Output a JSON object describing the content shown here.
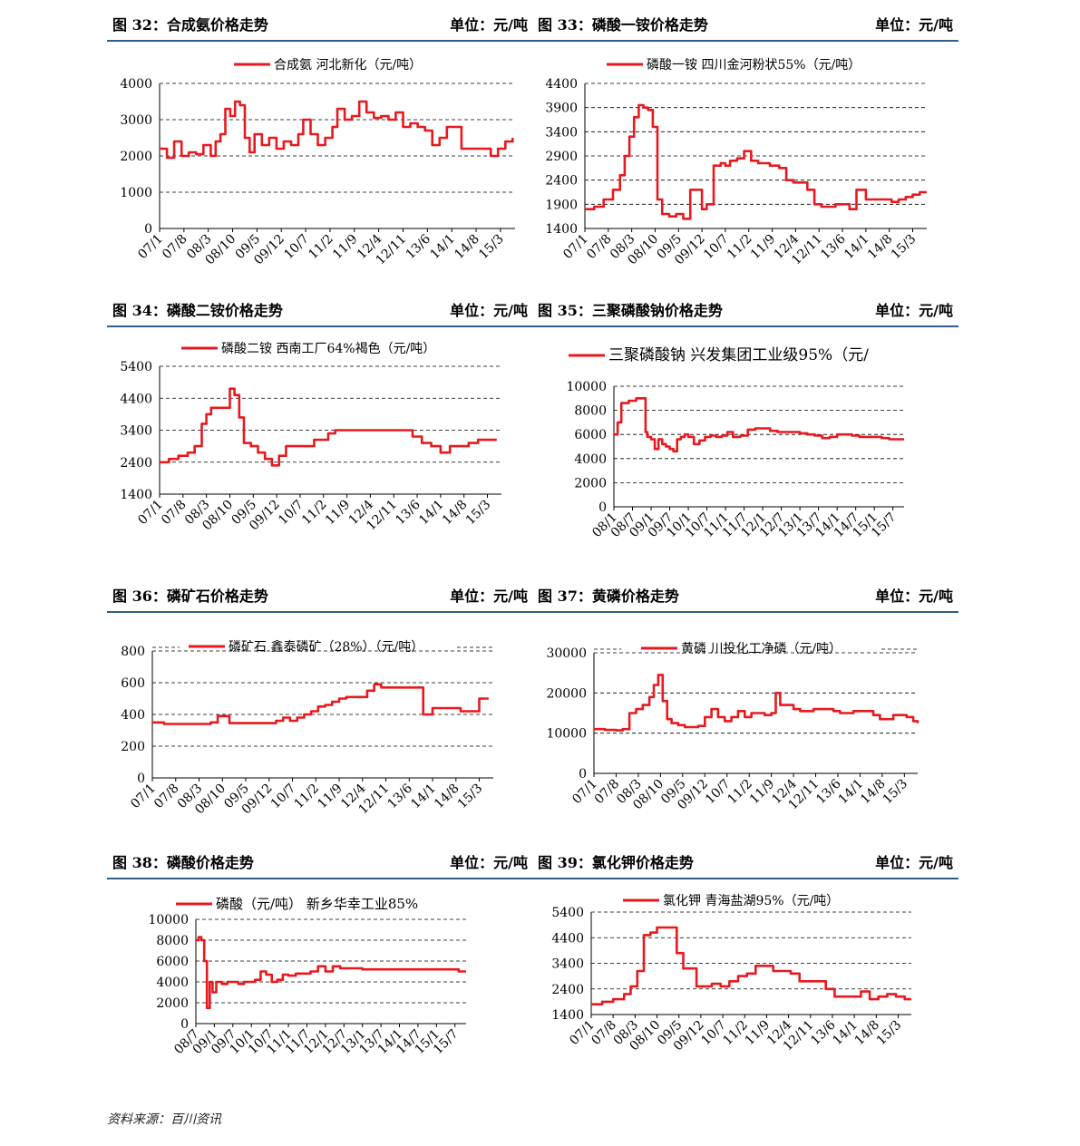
{
  "footer": {
    "source": "资料来源：百川资讯"
  },
  "chart_data": [
    {
      "id": "fig32",
      "type": "line",
      "fig_label": "图 32：合成氨价格走势",
      "unit": "单位：元/吨",
      "legend": "合成氨 河北新化（元/吨）",
      "ylim": [
        0,
        4000
      ],
      "yticks": [
        0,
        1000,
        2000,
        3000,
        4000
      ],
      "xticks": [
        "07/1",
        "07/8",
        "08/3",
        "08/10",
        "09/5",
        "09/12",
        "10/7",
        "11/2",
        "11/9",
        "12/4",
        "12/11",
        "13/6",
        "14/1",
        "14/8",
        "15/3"
      ],
      "xmax": 14.6,
      "series": [
        {
          "color": "#e8191e",
          "x": [
            0,
            0.3,
            0.6,
            0.9,
            1.2,
            1.5,
            1.8,
            2.1,
            2.3,
            2.5,
            2.7,
            2.9,
            3.1,
            3.3,
            3.5,
            3.7,
            3.9,
            4.2,
            4.5,
            4.8,
            5.1,
            5.4,
            5.7,
            5.9,
            6.2,
            6.5,
            6.8,
            7.1,
            7.3,
            7.6,
            7.9,
            8.2,
            8.5,
            8.8,
            9.1,
            9.4,
            9.7,
            10.0,
            10.3,
            10.6,
            10.9,
            11.2,
            11.5,
            11.8,
            12.1,
            12.4,
            12.7,
            13.0,
            13.3,
            13.6,
            13.9,
            14.2,
            14.5
          ],
          "y": [
            2200,
            1950,
            2400,
            2000,
            2100,
            2050,
            2300,
            2000,
            2400,
            2600,
            3300,
            3100,
            3500,
            3400,
            2500,
            2100,
            2600,
            2300,
            2500,
            2200,
            2400,
            2300,
            2600,
            3000,
            2600,
            2300,
            2500,
            2800,
            3300,
            3000,
            3100,
            3500,
            3200,
            3050,
            3100,
            3000,
            3200,
            2800,
            2900,
            2800,
            2700,
            2300,
            2500,
            2800,
            2800,
            2200,
            2200,
            2200,
            2200,
            2000,
            2200,
            2400,
            2500
          ]
        }
      ]
    },
    {
      "id": "fig33",
      "type": "line",
      "fig_label": "图 33：磷酸一铵价格走势",
      "unit": "单位：元/吨",
      "legend": "磷酸一铵 四川金河粉状55%（元/吨）",
      "ylim": [
        1400,
        4400
      ],
      "yticks": [
        1400,
        1900,
        2400,
        2900,
        3400,
        3900,
        4400
      ],
      "xticks": [
        "07/1",
        "07/8",
        "08/3",
        "08/10",
        "09/5",
        "09/12",
        "10/7",
        "11/2",
        "11/9",
        "12/4",
        "12/11",
        "13/6",
        "14/1",
        "14/8",
        "15/3"
      ],
      "xmax": 14.6,
      "series": [
        {
          "color": "#e8191e",
          "x": [
            0,
            0.4,
            0.8,
            1.2,
            1.5,
            1.7,
            1.9,
            2.1,
            2.3,
            2.5,
            2.7,
            2.9,
            3.1,
            3.3,
            3.6,
            3.9,
            4.2,
            4.5,
            4.8,
            5.0,
            5.2,
            5.5,
            5.8,
            6.0,
            6.2,
            6.5,
            6.8,
            7.1,
            7.4,
            7.7,
            7.9,
            8.1,
            8.3,
            8.6,
            8.9,
            9.2,
            9.5,
            9.8,
            10.1,
            10.4,
            10.7,
            11.0,
            11.3,
            11.6,
            12.0,
            12.4,
            12.8,
            13.1,
            13.4,
            13.7,
            14.0,
            14.3,
            14.6
          ],
          "y": [
            1800,
            1850,
            2000,
            2200,
            2500,
            2900,
            3300,
            3700,
            3950,
            3900,
            3850,
            3500,
            2000,
            1700,
            1650,
            1700,
            1600,
            2200,
            2200,
            1800,
            1900,
            2700,
            2750,
            2700,
            2800,
            2850,
            3000,
            2800,
            2750,
            2750,
            2700,
            2700,
            2650,
            2400,
            2350,
            2350,
            2200,
            1900,
            1850,
            1850,
            1900,
            1900,
            1800,
            2200,
            2000,
            2000,
            2000,
            1950,
            2000,
            2050,
            2100,
            2150,
            2150
          ]
        }
      ]
    },
    {
      "id": "fig34",
      "type": "line",
      "fig_label": "图 34：磷酸二铵价格走势",
      "unit": "单位：元/吨",
      "legend": "磷酸二铵 西南工厂64%褐色（元/吨）",
      "ylim": [
        1400,
        5400
      ],
      "yticks": [
        1400,
        2400,
        3400,
        4400,
        5400
      ],
      "xticks": [
        "07/1",
        "07/8",
        "08/3",
        "08/10",
        "09/5",
        "09/12",
        "10/7",
        "11/2",
        "11/9",
        "12/4",
        "12/11",
        "13/6",
        "14/1",
        "14/8",
        "15/3"
      ],
      "xmax": 14.6,
      "series": [
        {
          "color": "#e8191e",
          "x": [
            0,
            0.4,
            0.8,
            1.2,
            1.5,
            1.8,
            2.0,
            2.2,
            2.4,
            2.7,
            3.0,
            3.2,
            3.4,
            3.6,
            3.9,
            4.2,
            4.5,
            4.8,
            5.1,
            5.4,
            5.8,
            6.2,
            6.6,
            6.9,
            7.2,
            7.5,
            7.8,
            8.1,
            8.4,
            8.8,
            9.2,
            9.6,
            10.0,
            10.4,
            10.8,
            11.2,
            11.6,
            12.0,
            12.4,
            12.8,
            13.2,
            13.6,
            14.0,
            14.4
          ],
          "y": [
            2400,
            2500,
            2600,
            2700,
            2900,
            3600,
            3900,
            4100,
            4100,
            4100,
            4700,
            4500,
            3800,
            3000,
            2900,
            2700,
            2500,
            2300,
            2600,
            2900,
            2900,
            2900,
            3100,
            3100,
            3300,
            3400,
            3400,
            3400,
            3400,
            3400,
            3400,
            3400,
            3400,
            3400,
            3200,
            3000,
            2900,
            2700,
            2900,
            2900,
            3000,
            3100,
            3100,
            3100
          ]
        }
      ]
    },
    {
      "id": "fig35",
      "type": "line",
      "fig_label": "图 35：三聚磷酸钠价格走势",
      "unit": "单位：元/吨",
      "legend": "三聚磷酸钠 兴发集团工业级95%（元/",
      "ylim": [
        0,
        10000
      ],
      "yticks": [
        0,
        2000,
        4000,
        6000,
        8000,
        10000
      ],
      "xticks": [
        "08/1",
        "08/7",
        "09/1",
        "09/7",
        "10/1",
        "10/7",
        "11/1",
        "11/7",
        "12/1",
        "12/7",
        "13/1",
        "13/7",
        "14/1",
        "14/7",
        "15/1",
        "15/7"
      ],
      "xmax": 15.6,
      "series": [
        {
          "color": "#e8191e",
          "x": [
            0,
            0.2,
            0.4,
            0.6,
            0.8,
            1.0,
            1.2,
            1.4,
            1.6,
            1.7,
            1.8,
            2.0,
            2.2,
            2.4,
            2.6,
            2.8,
            3.0,
            3.2,
            3.4,
            3.6,
            3.8,
            4.0,
            4.3,
            4.6,
            4.9,
            5.2,
            5.5,
            5.8,
            6.1,
            6.4,
            6.8,
            7.2,
            7.6,
            8.0,
            8.4,
            8.8,
            9.2,
            9.6,
            10.0,
            10.4,
            10.8,
            11.2,
            11.6,
            12.0,
            12.4,
            12.8,
            13.2,
            13.6,
            14.0,
            14.4,
            14.8,
            15.2,
            15.6
          ],
          "y": [
            6000,
            7000,
            8600,
            8600,
            8800,
            8800,
            9000,
            9000,
            9000,
            6200,
            5800,
            5600,
            4800,
            5600,
            5200,
            5000,
            4800,
            4600,
            5600,
            5800,
            6000,
            5800,
            5200,
            5500,
            5800,
            5900,
            5800,
            5900,
            6200,
            5800,
            5900,
            6400,
            6500,
            6500,
            6300,
            6200,
            6200,
            6200,
            6100,
            6000,
            5900,
            5700,
            5800,
            6000,
            6000,
            5900,
            5800,
            5800,
            5800,
            5700,
            5600,
            5600,
            5600
          ]
        }
      ]
    },
    {
      "id": "fig36",
      "type": "line",
      "fig_label": "图 36：磷矿石价格走势",
      "unit": "单位：元/吨",
      "legend": "磷矿石 鑫泰磷矿（28%）（元/吨）",
      "ylim": [
        0,
        800
      ],
      "yticks": [
        0,
        200,
        400,
        600,
        800
      ],
      "xticks": [
        "07/1",
        "07/8",
        "08/3",
        "08/10",
        "09/5",
        "09/12",
        "10/7",
        "11/2",
        "11/9",
        "12/4",
        "12/11",
        "13/6",
        "14/1",
        "14/8",
        "15/3"
      ],
      "xmax": 14.6,
      "series": [
        {
          "color": "#e8191e",
          "x": [
            0,
            0.5,
            1.0,
            1.5,
            2.0,
            2.5,
            2.8,
            3.0,
            3.3,
            3.6,
            4.0,
            4.5,
            5.0,
            5.3,
            5.6,
            5.9,
            6.2,
            6.5,
            6.8,
            7.1,
            7.4,
            7.7,
            8.0,
            8.3,
            8.6,
            8.9,
            9.2,
            9.5,
            9.8,
            10.1,
            10.4,
            10.7,
            11.0,
            11.3,
            11.6,
            12.0,
            12.4,
            12.8,
            13.2,
            13.6,
            14.0,
            14.4
          ],
          "y": [
            350,
            340,
            340,
            340,
            340,
            350,
            390,
            390,
            345,
            345,
            345,
            345,
            345,
            360,
            380,
            360,
            380,
            400,
            420,
            450,
            460,
            480,
            500,
            510,
            510,
            510,
            550,
            590,
            570,
            570,
            570,
            570,
            570,
            570,
            400,
            440,
            440,
            440,
            420,
            420,
            500,
            500
          ]
        }
      ]
    },
    {
      "id": "fig37",
      "type": "line",
      "fig_label": "图 37：黄磷价格走势",
      "unit": "单位：元/吨",
      "legend": "黄磷 川投化工净磷（元/吨）",
      "ylim": [
        0,
        30000
      ],
      "yticks": [
        0,
        10000,
        20000,
        30000
      ],
      "xticks": [
        "07/1",
        "07/8",
        "08/3",
        "08/10",
        "09/5",
        "09/12",
        "10/7",
        "11/2",
        "11/9",
        "12/4",
        "12/11",
        "13/6",
        "14/1",
        "14/8",
        "15/3"
      ],
      "xmax": 14.6,
      "series": [
        {
          "color": "#e8191e",
          "x": [
            0,
            0.5,
            1.0,
            1.3,
            1.6,
            1.9,
            2.2,
            2.5,
            2.7,
            2.9,
            3.1,
            3.3,
            3.5,
            3.8,
            4.1,
            4.4,
            4.7,
            5.0,
            5.3,
            5.6,
            5.9,
            6.2,
            6.5,
            6.8,
            7.1,
            7.4,
            7.7,
            8.0,
            8.2,
            8.4,
            8.7,
            9.0,
            9.3,
            9.6,
            9.9,
            10.2,
            10.5,
            10.8,
            11.1,
            11.4,
            11.7,
            12.0,
            12.3,
            12.6,
            12.9,
            13.2,
            13.5,
            13.8,
            14.1,
            14.4,
            14.6
          ],
          "y": [
            11000,
            10800,
            10700,
            11000,
            15000,
            16000,
            17000,
            19000,
            22000,
            24500,
            18000,
            13500,
            12500,
            12000,
            11500,
            11500,
            11800,
            14000,
            16000,
            14000,
            13000,
            14000,
            15500,
            14000,
            15000,
            15000,
            14500,
            15000,
            20000,
            17000,
            17000,
            16000,
            15500,
            15500,
            16000,
            16000,
            16000,
            15500,
            15000,
            15000,
            15500,
            15500,
            15500,
            14500,
            13500,
            13500,
            14500,
            14500,
            14000,
            13000,
            12500
          ]
        }
      ]
    },
    {
      "id": "fig38",
      "type": "line",
      "fig_label": "图 38：磷酸价格走势",
      "unit": "单位：元/吨",
      "legend": "磷酸（元/吨） 新乡华幸工业85%",
      "ylim": [
        0,
        10000
      ],
      "yticks": [
        0,
        2000,
        4000,
        6000,
        8000,
        10000
      ],
      "xticks": [
        "08/7",
        "09/1",
        "09/7",
        "10/1",
        "10/7",
        "11/1",
        "11/7",
        "12/1",
        "12/7",
        "13/1",
        "13/7",
        "14/1",
        "14/7",
        "15/1",
        "15/7"
      ],
      "xmax": 14.6,
      "series": [
        {
          "color": "#e8191e",
          "x": [
            0,
            0.15,
            0.3,
            0.45,
            0.6,
            0.75,
            0.9,
            1.1,
            1.4,
            1.7,
            2.0,
            2.3,
            2.6,
            2.9,
            3.2,
            3.5,
            3.8,
            4.1,
            4.4,
            4.7,
            5.0,
            5.4,
            5.8,
            6.2,
            6.6,
            7.0,
            7.4,
            7.8,
            8.2,
            8.6,
            9.0,
            9.4,
            9.8,
            10.2,
            10.6,
            11.0,
            11.4,
            11.8,
            12.2,
            12.6,
            13.0,
            13.4,
            13.8,
            14.2,
            14.6
          ],
          "y": [
            8000,
            8300,
            8000,
            6000,
            1500,
            4000,
            3000,
            4000,
            3800,
            4000,
            4000,
            3800,
            4000,
            4000,
            4200,
            5000,
            4700,
            4000,
            4200,
            4700,
            4600,
            4800,
            4800,
            5000,
            5500,
            5000,
            5500,
            5300,
            5300,
            5300,
            5200,
            5200,
            5200,
            5200,
            5200,
            5200,
            5200,
            5200,
            5200,
            5200,
            5200,
            5200,
            5200,
            5000,
            5000
          ]
        }
      ]
    },
    {
      "id": "fig39",
      "type": "line",
      "fig_label": "图 39：氯化钾价格走势",
      "unit": "单位：元/吨",
      "legend": "氯化钾 青海盐湖95%（元/吨）",
      "ylim": [
        1400,
        5400
      ],
      "yticks": [
        1400,
        2400,
        3400,
        4400,
        5400
      ],
      "xticks": [
        "07/1",
        "07/8",
        "08/3",
        "08/10",
        "09/5",
        "09/12",
        "10/7",
        "11/2",
        "11/9",
        "12/4",
        "12/11",
        "13/6",
        "14/1",
        "14/8",
        "15/3"
      ],
      "xmax": 14.6,
      "series": [
        {
          "color": "#e8191e",
          "x": [
            0,
            0.5,
            1.0,
            1.5,
            1.8,
            2.1,
            2.4,
            2.7,
            3.0,
            3.3,
            3.6,
            3.9,
            4.2,
            4.5,
            4.8,
            5.1,
            5.5,
            5.9,
            6.3,
            6.7,
            7.1,
            7.5,
            7.9,
            8.3,
            8.7,
            9.1,
            9.5,
            9.9,
            10.3,
            10.7,
            11.1,
            11.5,
            11.9,
            12.3,
            12.7,
            13.1,
            13.5,
            13.9,
            14.3,
            14.6
          ],
          "y": [
            1800,
            1900,
            2000,
            2200,
            2500,
            3100,
            4500,
            4600,
            4800,
            4800,
            4800,
            3800,
            3200,
            3200,
            2500,
            2500,
            2600,
            2500,
            2700,
            2900,
            3000,
            3300,
            3300,
            3100,
            3100,
            3000,
            2700,
            2700,
            2700,
            2400,
            2100,
            2100,
            2100,
            2300,
            2000,
            2100,
            2200,
            2100,
            2000,
            2000
          ]
        }
      ]
    }
  ]
}
